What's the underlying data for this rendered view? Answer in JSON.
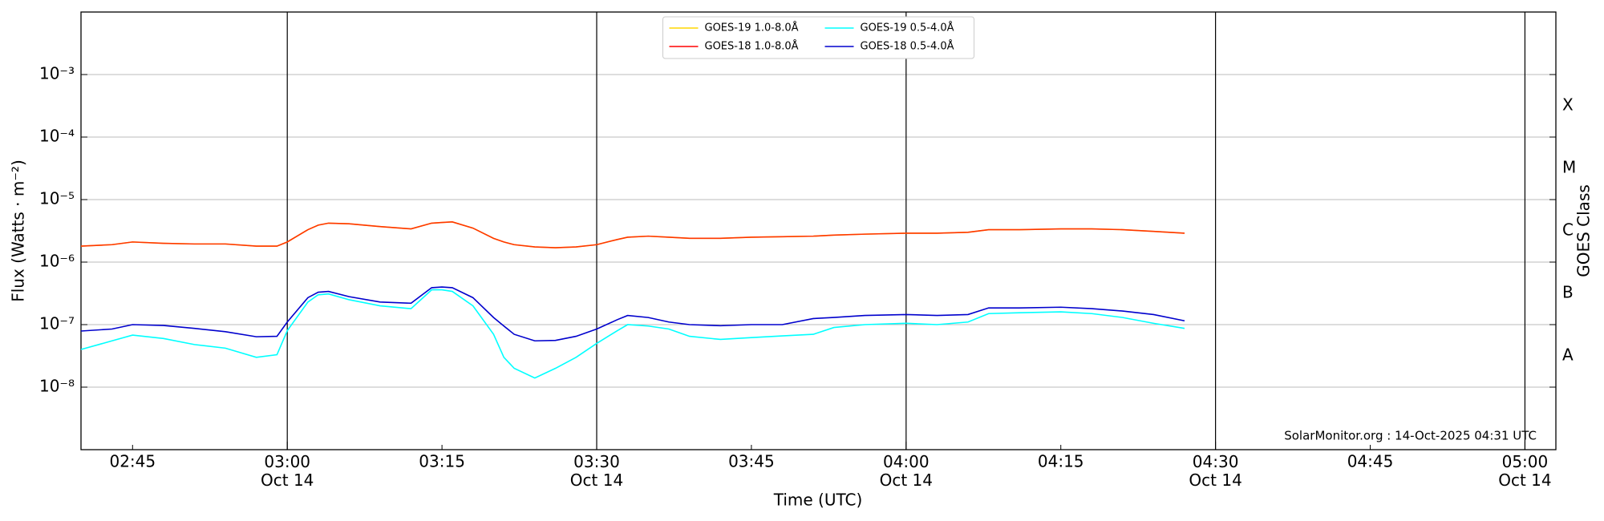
{
  "chart_data": {
    "type": "line",
    "x_label": "Time (UTC)",
    "y_label": "Flux (Watts · m⁻²)",
    "y2_label": "GOES Class",
    "annotation": "SolarMonitor.org : 14-Oct-2025 04:31 UTC",
    "log_y": true,
    "xgrid": "major",
    "ygrid": true,
    "legend": "upper center",
    "legend_columns": 2,
    "xlim": [
      "02:40",
      "05:03"
    ],
    "xticks": [
      {
        "value": "03:00",
        "label": "03:00\nOct 14"
      },
      {
        "value": "03:30",
        "label": "03:30\nOct 14"
      },
      {
        "value": "04:00",
        "label": "04:00\nOct 14"
      },
      {
        "value": "04:30",
        "label": "04:30\nOct 14"
      },
      {
        "value": "05:00",
        "label": "05:00\nOct 14"
      }
    ],
    "xminorticks": [
      "02:45",
      "03:15",
      "03:45",
      "04:15",
      "04:45"
    ],
    "ylim": [
      1e-09,
      0.01
    ],
    "yticks": [
      {
        "value": 1e-08,
        "label": "10⁻⁸"
      },
      {
        "value": 1e-07,
        "label": "10⁻⁷"
      },
      {
        "value": 1e-06,
        "label": "10⁻⁶"
      },
      {
        "value": 1e-05,
        "label": "10⁻⁵"
      },
      {
        "value": 0.0001,
        "label": "10⁻⁴"
      },
      {
        "value": 0.001,
        "label": "10⁻³"
      }
    ],
    "y2lim": [
      1e-09,
      0.01
    ],
    "y2ticks": [
      {
        "value": 3.16e-08,
        "label": "A"
      },
      {
        "value": 3.16e-07,
        "label": "B"
      },
      {
        "value": 3.16e-06,
        "label": "C"
      },
      {
        "value": 3.16e-05,
        "label": "M"
      },
      {
        "value": 0.000316,
        "label": "X"
      }
    ],
    "x": [
      "02:40",
      "02:43",
      "02:45",
      "02:48",
      "02:51",
      "02:54",
      "02:57",
      "02:59",
      "03:00",
      "03:02",
      "03:03",
      "03:04",
      "03:06",
      "03:09",
      "03:12",
      "03:14",
      "03:15",
      "03:16",
      "03:18",
      "03:20",
      "03:21",
      "03:22",
      "03:24",
      "03:26",
      "03:28",
      "03:30",
      "03:32",
      "03:33",
      "03:35",
      "03:37",
      "03:39",
      "03:42",
      "03:45",
      "03:48",
      "03:51",
      "03:53",
      "03:56",
      "04:00",
      "04:03",
      "04:06",
      "04:08",
      "04:11",
      "04:15",
      "04:18",
      "04:21",
      "04:24",
      "04:27"
    ],
    "series": [
      {
        "name": "GOES-19 1.0-8.0Å",
        "color": "#ffd700",
        "values": [
          1.8e-06,
          1.9e-06,
          2.1e-06,
          2e-06,
          1.95e-06,
          1.95e-06,
          1.8e-06,
          1.8e-06,
          2.1e-06,
          3.3e-06,
          3.9e-06,
          4.2e-06,
          4.1e-06,
          3.7e-06,
          3.4e-06,
          4.2e-06,
          4.3e-06,
          4.4e-06,
          3.5e-06,
          2.4e-06,
          2.1e-06,
          1.9e-06,
          1.75e-06,
          1.7e-06,
          1.75e-06,
          1.9e-06,
          2.3e-06,
          2.5e-06,
          2.6e-06,
          2.5e-06,
          2.4e-06,
          2.4e-06,
          2.5e-06,
          2.55e-06,
          2.6e-06,
          2.7e-06,
          2.8e-06,
          2.9e-06,
          2.9e-06,
          3e-06,
          3.3e-06,
          3.3e-06,
          3.4e-06,
          3.4e-06,
          3.3e-06,
          3.1e-06,
          2.9e-06
        ]
      },
      {
        "name": "GOES-18 1.0-8.0Å",
        "color": "#ff0000",
        "values": [
          1.8e-06,
          1.9e-06,
          2.1e-06,
          2e-06,
          1.95e-06,
          1.95e-06,
          1.8e-06,
          1.8e-06,
          2.1e-06,
          3.3e-06,
          3.9e-06,
          4.2e-06,
          4.1e-06,
          3.7e-06,
          3.4e-06,
          4.2e-06,
          4.3e-06,
          4.4e-06,
          3.5e-06,
          2.4e-06,
          2.1e-06,
          1.9e-06,
          1.75e-06,
          1.7e-06,
          1.75e-06,
          1.9e-06,
          2.3e-06,
          2.5e-06,
          2.6e-06,
          2.5e-06,
          2.4e-06,
          2.4e-06,
          2.5e-06,
          2.55e-06,
          2.6e-06,
          2.7e-06,
          2.8e-06,
          2.9e-06,
          2.9e-06,
          3e-06,
          3.3e-06,
          3.3e-06,
          3.4e-06,
          3.4e-06,
          3.3e-06,
          3.1e-06,
          2.9e-06
        ]
      },
      {
        "name": "GOES-19 0.5-4.0Å",
        "color": "#00ffff",
        "values": [
          4e-08,
          5.5e-08,
          6.8e-08,
          6e-08,
          4.8e-08,
          4.2e-08,
          3e-08,
          3.3e-08,
          8e-08,
          2.3e-07,
          3e-07,
          3.1e-07,
          2.5e-07,
          2e-07,
          1.8e-07,
          3.6e-07,
          3.6e-07,
          3.4e-07,
          2e-07,
          7e-08,
          3e-08,
          2e-08,
          1.4e-08,
          2e-08,
          3e-08,
          5e-08,
          8e-08,
          1e-07,
          9.5e-08,
          8.5e-08,
          6.5e-08,
          5.8e-08,
          6.2e-08,
          6.6e-08,
          7e-08,
          9e-08,
          1e-07,
          1.05e-07,
          1e-07,
          1.1e-07,
          1.5e-07,
          1.55e-07,
          1.6e-07,
          1.5e-07,
          1.3e-07,
          1.05e-07,
          8.7e-08
        ]
      },
      {
        "name": "GOES-18 0.5-4.0Å",
        "color": "#0000cd",
        "values": [
          7.9e-08,
          8.5e-08,
          1e-07,
          9.7e-08,
          8.7e-08,
          7.7e-08,
          6.4e-08,
          6.5e-08,
          1.1e-07,
          2.7e-07,
          3.3e-07,
          3.4e-07,
          2.8e-07,
          2.3e-07,
          2.2e-07,
          3.9e-07,
          4e-07,
          3.9e-07,
          2.7e-07,
          1.3e-07,
          9.5e-08,
          7e-08,
          5.5e-08,
          5.6e-08,
          6.5e-08,
          8.5e-08,
          1.2e-07,
          1.4e-07,
          1.3e-07,
          1.1e-07,
          1e-07,
          9.6e-08,
          1e-07,
          1e-07,
          1.25e-07,
          1.3e-07,
          1.4e-07,
          1.45e-07,
          1.4e-07,
          1.45e-07,
          1.85e-07,
          1.85e-07,
          1.9e-07,
          1.8e-07,
          1.65e-07,
          1.45e-07,
          1.15e-07
        ]
      }
    ]
  }
}
